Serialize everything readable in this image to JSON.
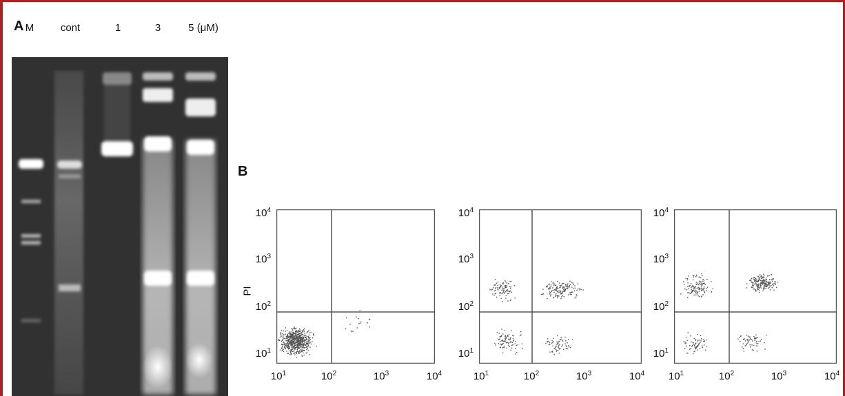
{
  "panel_a": {
    "label": "A",
    "lanes": [
      "M",
      "cont",
      "1",
      "3",
      "5 (μM)"
    ]
  },
  "panel_b": {
    "label": "B",
    "y_axis_label": "PI",
    "y_ticks": [
      "10",
      "10",
      "10",
      "10"
    ],
    "y_exponents": [
      "4",
      "3",
      "2",
      "1"
    ],
    "x_ticks": [
      "10",
      "10",
      "10",
      "10"
    ],
    "x_exponents": [
      "1",
      "2",
      "3",
      "4"
    ]
  },
  "colors": {
    "border": "#b21f1f",
    "gel_background": "#2b2b2b",
    "band": "#ffffff"
  }
}
